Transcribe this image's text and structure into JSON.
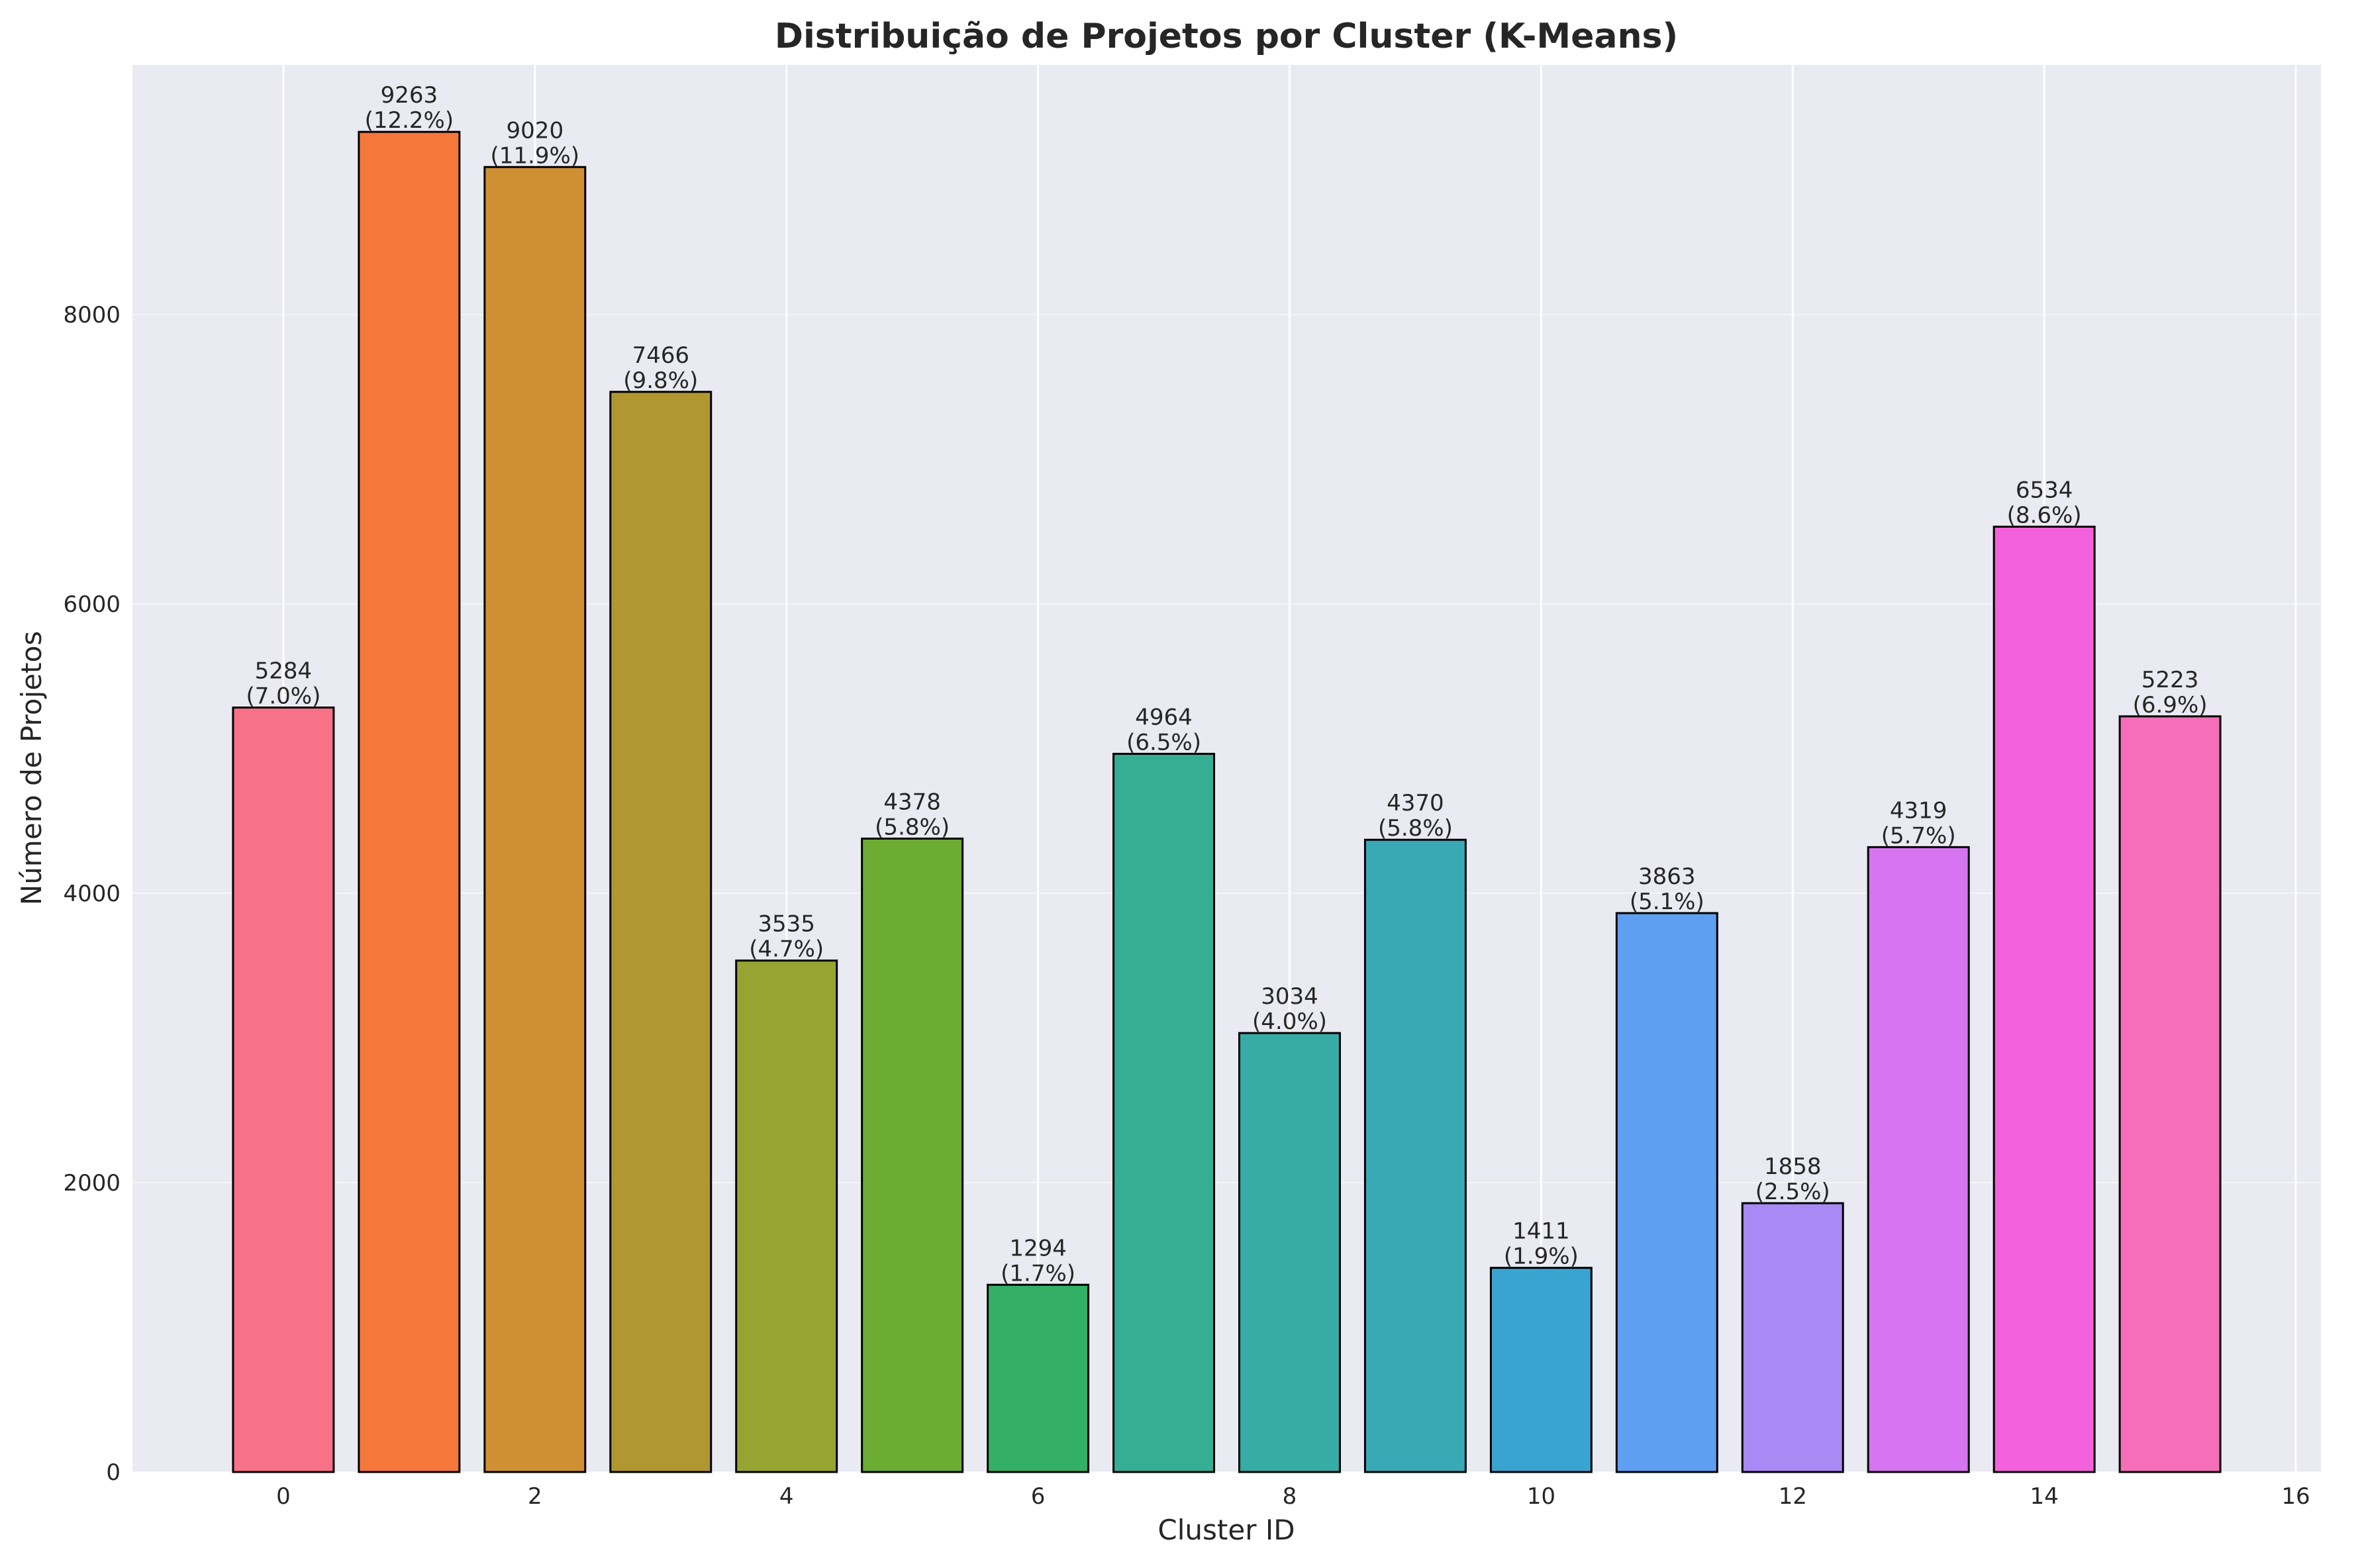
{
  "chart_data": {
    "type": "bar",
    "title": "Distribuição de Projetos por Cluster (K-Means)",
    "xlabel": "Cluster ID",
    "ylabel": "Número de Projetos",
    "categories": [
      0,
      1,
      2,
      3,
      4,
      5,
      6,
      7,
      8,
      9,
      10,
      11,
      12,
      13,
      14,
      15
    ],
    "values": [
      5284,
      9263,
      9020,
      7466,
      3535,
      4378,
      1294,
      4964,
      3034,
      4370,
      1411,
      3863,
      1858,
      4319,
      6534,
      5223
    ],
    "percent_labels": [
      "(7.0%)",
      "(12.2%)",
      "(11.9%)",
      "(9.8%)",
      "(4.7%)",
      "(5.8%)",
      "(1.7%)",
      "(6.5%)",
      "(4.0%)",
      "(5.8%)",
      "(1.9%)",
      "(5.1%)",
      "(2.5%)",
      "(5.7%)",
      "(8.6%)",
      "(6.9%)"
    ],
    "colors": [
      "#f77189",
      "#f6773a",
      "#cf8f33",
      "#b0972f",
      "#97a431",
      "#6dac33",
      "#33b066",
      "#35ae93",
      "#37aba5",
      "#39a9b6",
      "#3aa4d1",
      "#5e9ff1",
      "#a78af3",
      "#d774f1",
      "#f461dc",
      "#f66eb7"
    ],
    "xlim": [
      -1.2,
      16.2
    ],
    "ylim": [
      0,
      9726
    ],
    "xticks": [
      0,
      2,
      4,
      6,
      8,
      10,
      12,
      14,
      16
    ],
    "yticks": [
      0,
      2000,
      4000,
      6000,
      8000
    ],
    "grid": true,
    "background": "#eaeaf2"
  }
}
